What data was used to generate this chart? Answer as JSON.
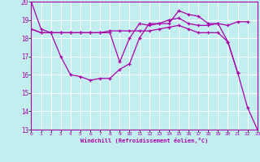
{
  "xlabel": "Windchill (Refroidissement éolien,°C)",
  "xlim": [
    0,
    23
  ],
  "ylim": [
    13,
    20
  ],
  "yticks": [
    13,
    14,
    15,
    16,
    17,
    18,
    19,
    20
  ],
  "xticks": [
    0,
    1,
    2,
    3,
    4,
    5,
    6,
    7,
    8,
    9,
    10,
    11,
    12,
    13,
    14,
    15,
    16,
    17,
    18,
    19,
    20,
    21,
    22,
    23
  ],
  "bg_color": "#c2eef0",
  "line_color": "#aa00aa",
  "grid_color": "#ffffff",
  "lines": [
    {
      "x": [
        0,
        1,
        2,
        3,
        4,
        5,
        6,
        7,
        8,
        9,
        10,
        11,
        12,
        13,
        14,
        15,
        16,
        17,
        18,
        19,
        20,
        21,
        22,
        23
      ],
      "y": [
        20.0,
        18.5,
        18.3,
        18.3,
        18.3,
        18.3,
        18.3,
        18.3,
        18.4,
        18.4,
        18.4,
        18.4,
        18.4,
        18.5,
        18.6,
        18.7,
        18.5,
        18.3,
        18.3,
        18.3,
        17.8,
        16.1,
        14.2,
        13.0
      ]
    },
    {
      "x": [
        0,
        1,
        2,
        3,
        4,
        5,
        6,
        7,
        8,
        9,
        10,
        11,
        12,
        13,
        14,
        15,
        16,
        17,
        18,
        19,
        20,
        21,
        22
      ],
      "y": [
        18.5,
        18.3,
        18.3,
        17.0,
        16.0,
        15.9,
        15.7,
        15.8,
        15.8,
        16.3,
        16.6,
        18.0,
        18.8,
        18.8,
        18.8,
        19.5,
        19.3,
        19.2,
        18.8,
        18.8,
        18.7,
        18.9,
        18.9
      ]
    },
    {
      "x": [
        0,
        1,
        2,
        3,
        4,
        5,
        6,
        7,
        8,
        9,
        10,
        11,
        12,
        13,
        14,
        15,
        16,
        17,
        18,
        19,
        20,
        21
      ],
      "y": [
        18.5,
        18.3,
        18.3,
        18.3,
        18.3,
        18.3,
        18.3,
        18.3,
        18.3,
        16.7,
        18.0,
        18.8,
        18.7,
        18.8,
        19.0,
        19.1,
        18.8,
        18.7,
        18.7,
        18.8,
        17.8,
        16.1
      ]
    }
  ]
}
